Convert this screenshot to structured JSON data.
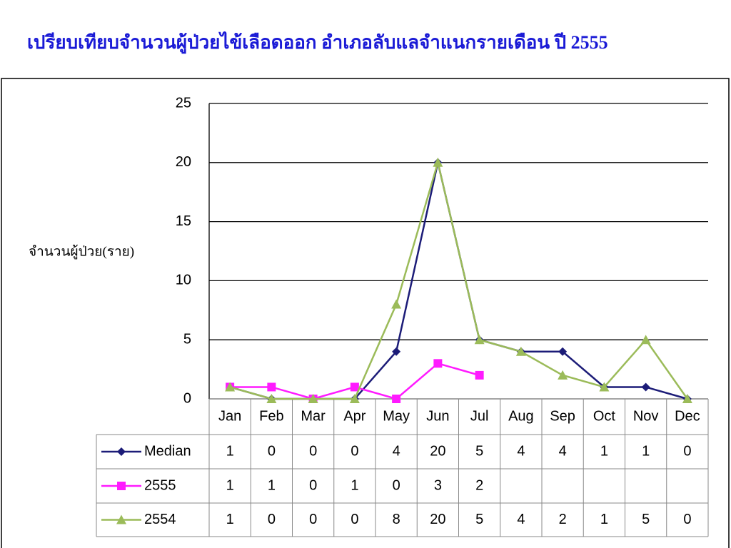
{
  "chart_data": {
    "type": "line",
    "title": "เปรียบเทียบจำนวนผู้ป่วยไข้เลือดออก อำเภอลับแลจำแนกรายเดือน ปี 2555",
    "y_label": "จำนวนผู้ป่วย(ราย)",
    "categories": [
      "Jan",
      "Feb",
      "Mar",
      "Apr",
      "May",
      "Jun",
      "Jul",
      "Aug",
      "Sep",
      "Oct",
      "Nov",
      "Dec"
    ],
    "series": [
      {
        "name": "Median",
        "color": "#1c1c78",
        "marker": "diamond",
        "values": [
          1,
          0,
          0,
          0,
          4,
          20,
          5,
          4,
          4,
          1,
          1,
          0
        ]
      },
      {
        "name": "2555",
        "color": "#ff1aff",
        "marker": "square",
        "values": [
          1,
          1,
          0,
          1,
          0,
          3,
          2,
          null,
          null,
          null,
          null,
          null
        ]
      },
      {
        "name": "2554",
        "color": "#9bbb59",
        "marker": "triangle",
        "values": [
          1,
          0,
          0,
          0,
          8,
          20,
          5,
          4,
          2,
          1,
          5,
          0
        ]
      }
    ],
    "ylim": [
      0,
      25
    ],
    "yticks": [
      0,
      5,
      10,
      15,
      20,
      25
    ],
    "grid": true,
    "data_table": true
  }
}
